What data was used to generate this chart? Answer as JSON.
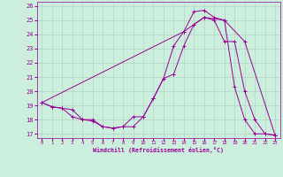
{
  "xlabel": "Windchill (Refroidissement éolien,°C)",
  "bg_color": "#cceedd",
  "line_color": "#990099",
  "xlim": [
    -0.5,
    23.5
  ],
  "ylim": [
    16.7,
    26.3
  ],
  "xticks": [
    0,
    1,
    2,
    3,
    4,
    5,
    6,
    7,
    8,
    9,
    10,
    11,
    12,
    13,
    14,
    15,
    16,
    17,
    18,
    19,
    20,
    21,
    22,
    23
  ],
  "yticks": [
    17,
    18,
    19,
    20,
    21,
    22,
    23,
    24,
    25,
    26
  ],
  "line1_x": [
    0,
    1,
    2,
    3,
    4,
    5,
    6,
    7,
    8,
    9,
    10,
    11,
    12,
    13,
    14,
    15,
    16,
    17,
    18,
    19,
    20,
    21,
    22,
    23
  ],
  "line1_y": [
    19.2,
    18.9,
    18.8,
    18.2,
    18.0,
    18.0,
    17.5,
    17.4,
    17.5,
    18.2,
    18.2,
    19.5,
    20.9,
    23.2,
    24.2,
    25.6,
    25.7,
    25.2,
    25.0,
    20.3,
    18.0,
    17.0,
    17.0,
    16.9
  ],
  "line2_x": [
    0,
    1,
    2,
    3,
    4,
    5,
    6,
    7,
    8,
    9,
    10,
    11,
    12,
    13,
    14,
    15,
    16,
    17,
    18,
    19,
    20,
    21,
    22,
    23
  ],
  "line2_y": [
    19.2,
    18.9,
    18.8,
    18.7,
    18.0,
    17.9,
    17.5,
    17.4,
    17.5,
    17.5,
    18.2,
    19.5,
    20.9,
    21.2,
    23.2,
    24.7,
    25.2,
    25.0,
    23.5,
    23.5,
    20.0,
    18.0,
    17.0,
    16.9
  ],
  "line3_x": [
    0,
    14,
    16,
    18,
    20,
    23
  ],
  "line3_y": [
    19.2,
    24.2,
    25.2,
    25.0,
    23.5,
    16.9
  ]
}
